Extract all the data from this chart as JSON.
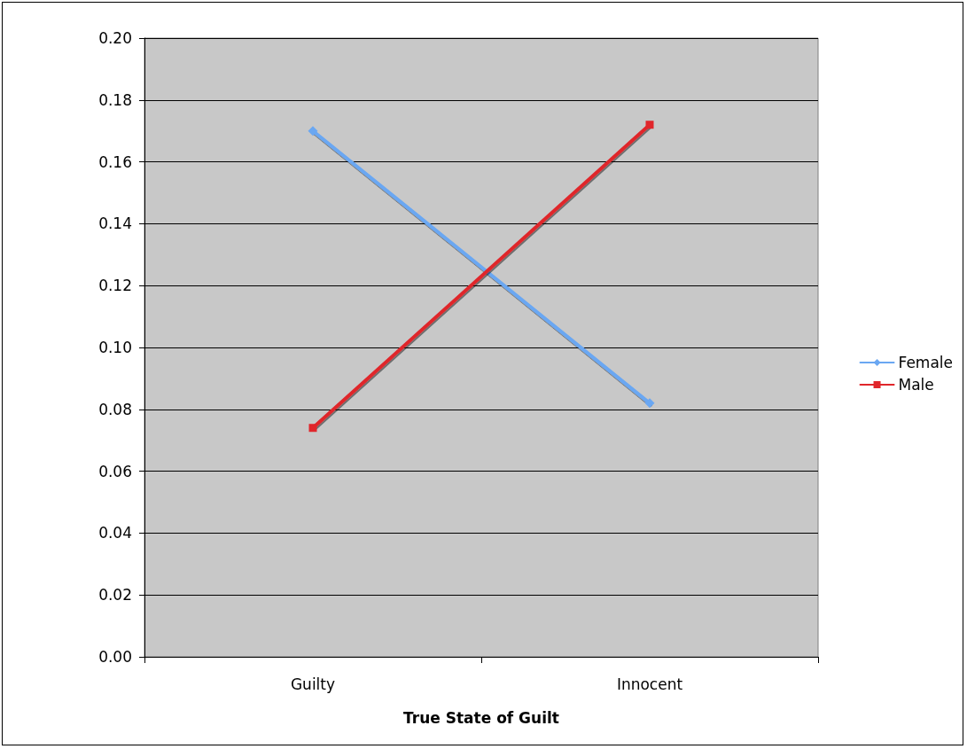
{
  "chart_data": {
    "type": "line",
    "xlabel": "True State of Guilt",
    "categories": [
      "Guilty",
      "Innocent"
    ],
    "series": [
      {
        "name": "Female",
        "color": "#6aa7f2",
        "marker": "diamond",
        "values": [
          0.17,
          0.082
        ]
      },
      {
        "name": "Male",
        "color": "#e0262b",
        "marker": "square",
        "values": [
          0.074,
          0.172
        ]
      }
    ],
    "ylim": [
      0,
      0.2
    ],
    "yticks": [
      {
        "value": 0,
        "label": "0.00"
      },
      0.02,
      0.04,
      0.06,
      0.08,
      {
        "value": 0.1,
        "label": "0.10"
      },
      0.12,
      0.14,
      0.16,
      0.18,
      {
        "value": 0.2,
        "label": "0.20"
      }
    ],
    "grid": "y",
    "legend": "right",
    "line_style": "solid"
  }
}
